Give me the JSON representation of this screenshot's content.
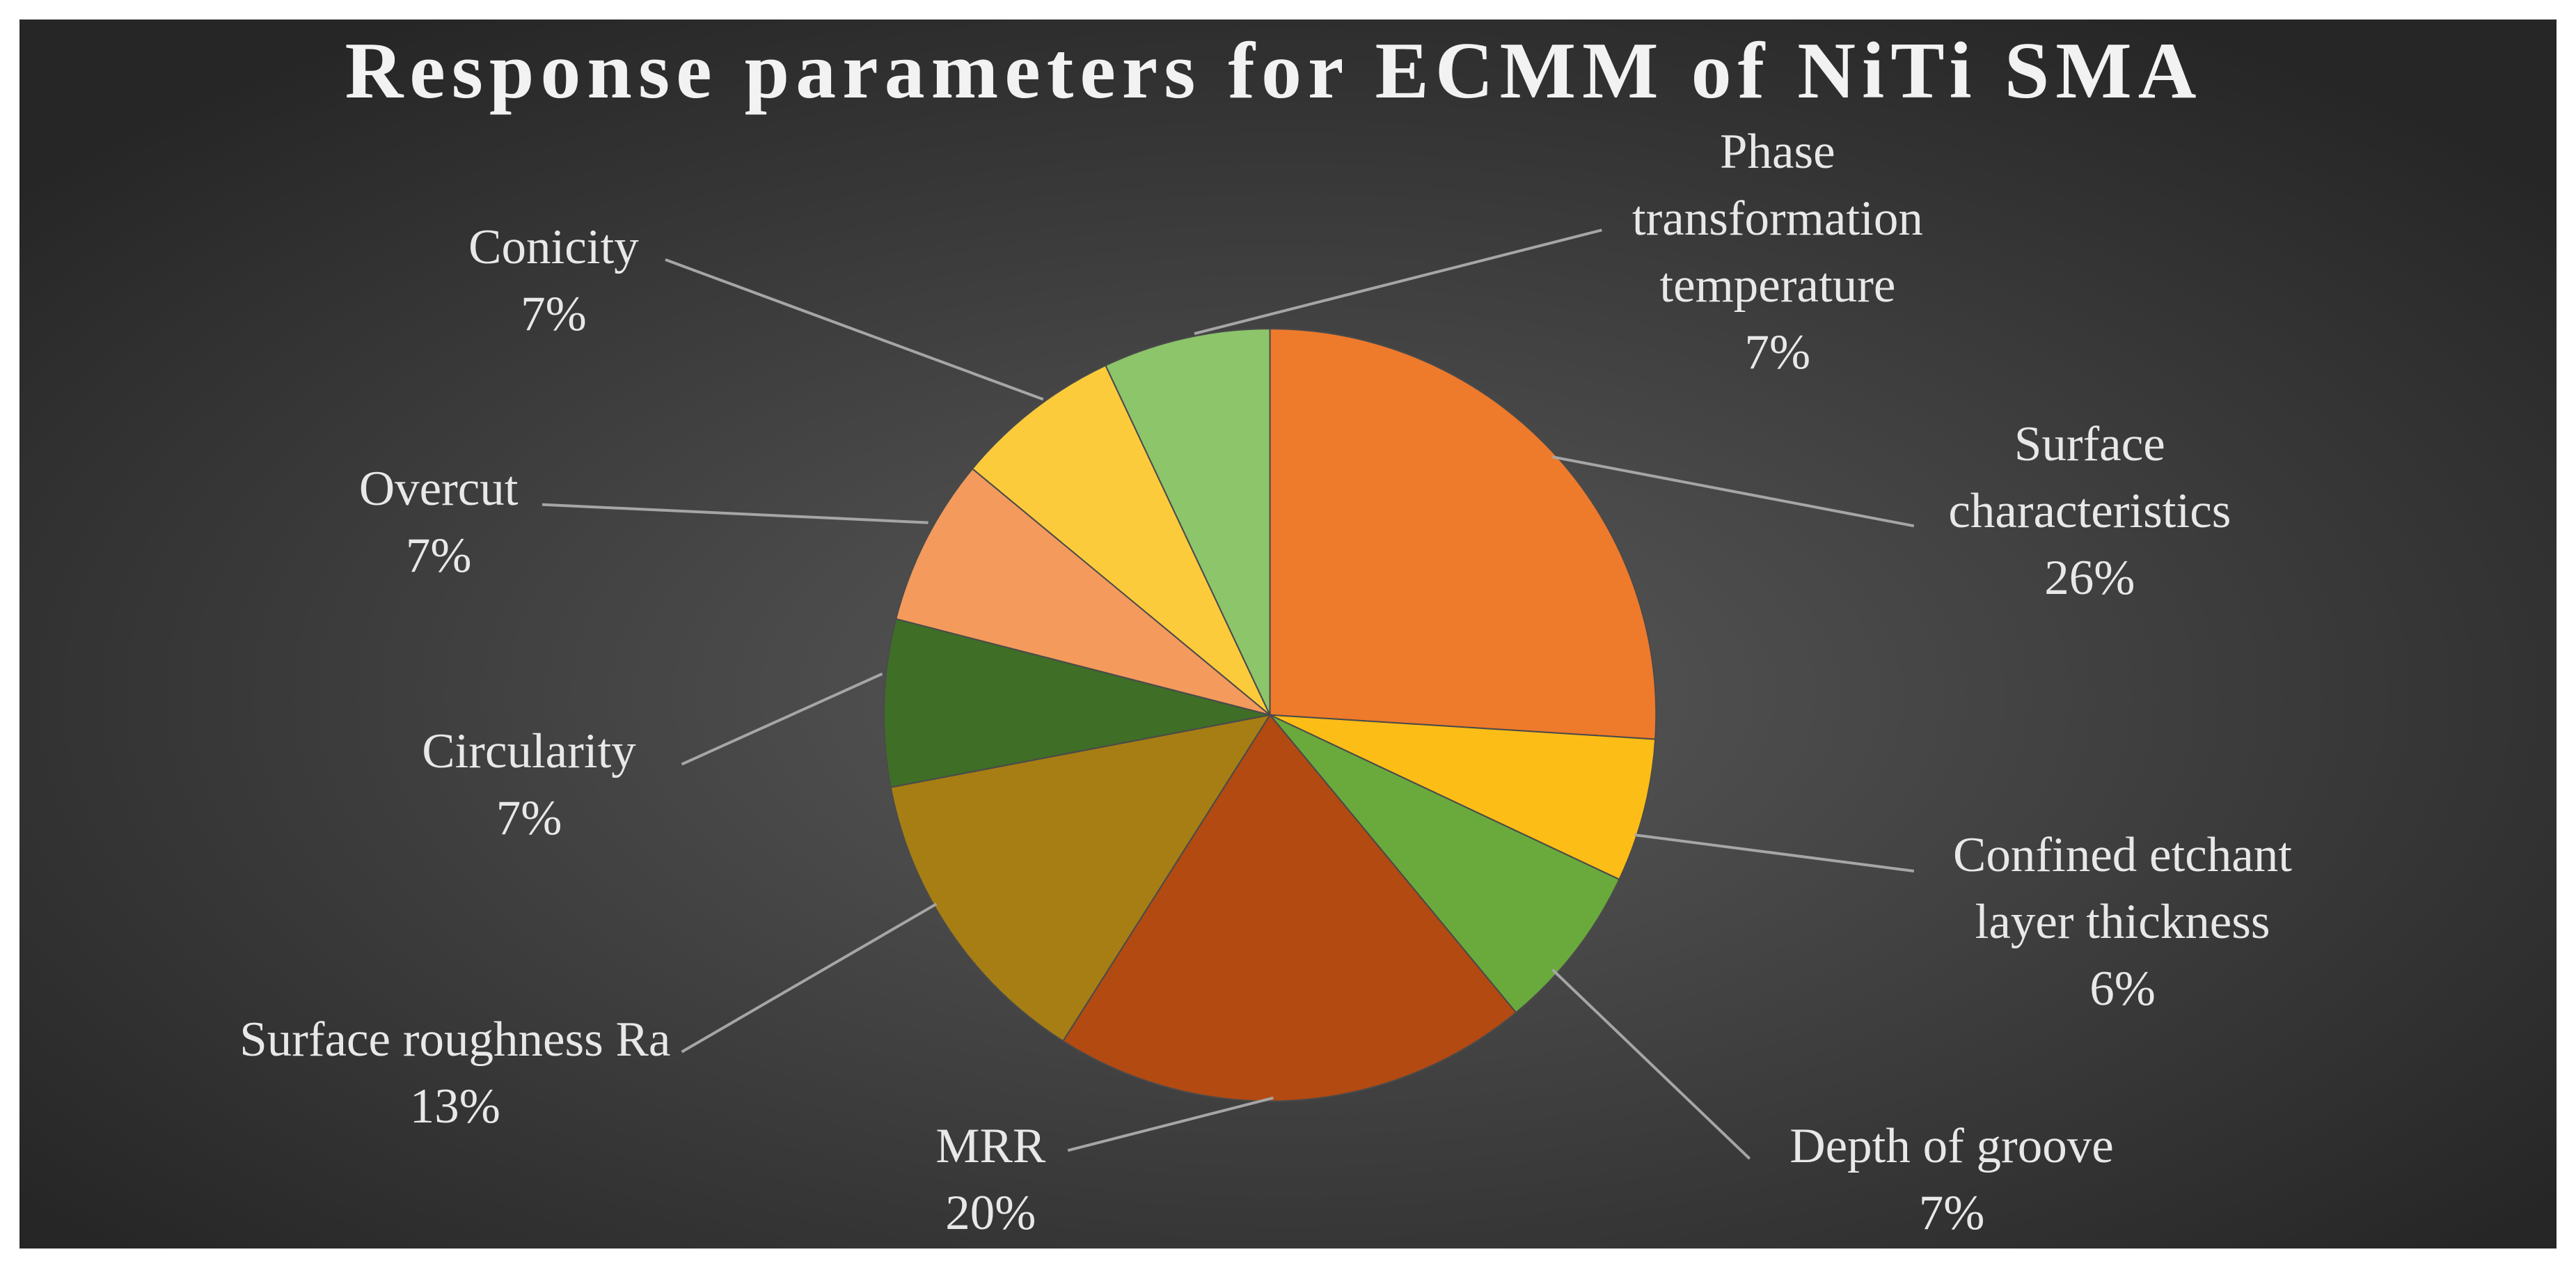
{
  "chart_data": {
    "type": "pie",
    "title": "Response parameters for ECMM of NiTi SMA",
    "categories": [
      "Surface characteristics",
      "Confined etchant layer thickness",
      "Depth of groove",
      "MRR",
      "Surface roughness Ra",
      "Circularity",
      "Overcut",
      "Conicity",
      "Phase transformation temperature"
    ],
    "values": [
      26,
      6,
      7,
      20,
      13,
      7,
      7,
      7,
      7
    ],
    "value_labels": [
      "26%",
      "6%",
      "7%",
      "20%",
      "13%",
      "7%",
      "7%",
      "7%",
      "7%"
    ],
    "colors": [
      "#ee7a2c",
      "#fdbd17",
      "#6aaa3c",
      "#b24a12",
      "#a67e14",
      "#3f6e27",
      "#f39a5c",
      "#fccb3c",
      "#8cc56a"
    ]
  }
}
